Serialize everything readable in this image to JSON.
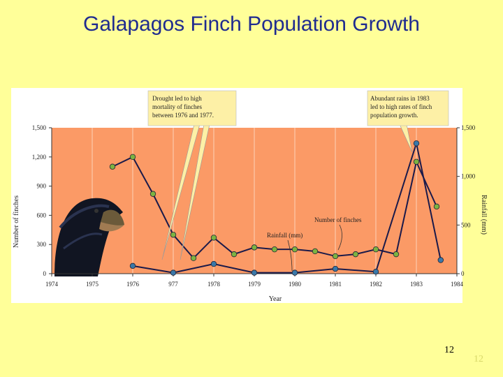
{
  "slide": {
    "title": "Galapagos Finch Population Growth",
    "page_number": "12",
    "page_number_ghost": "12"
  },
  "colors": {
    "background": "#ffff99",
    "title": "#1f2b8f",
    "plot": "#fb9a66",
    "callout": "#fdf0a6",
    "finch_marker": "#7cb342",
    "rain_marker": "#3a78a8",
    "line": "#1a1a4a"
  },
  "chart_data": {
    "type": "line",
    "xlabel": "Year",
    "ylabel": "Number of finches",
    "ylabel_right": "Rainfall (mm)",
    "xlim": [
      1974,
      1984
    ],
    "ylim": [
      0,
      1500
    ],
    "ylim_right": [
      0,
      1500
    ],
    "x_ticks": [
      "1974",
      "1975",
      "1976",
      "977",
      "1978",
      "1979",
      "1980",
      "1981",
      "1982",
      "1983",
      "1984"
    ],
    "y_ticks": [
      "0",
      "300",
      "600",
      "900",
      "1,200",
      "1,500"
    ],
    "y_ticks_right": [
      "0",
      "500",
      "1,000",
      "1,500"
    ],
    "series": [
      {
        "name": "Number of finches",
        "marker_color": "#7cb342",
        "points": [
          [
            1975.5,
            1100
          ],
          [
            1976.0,
            1200
          ],
          [
            1976.5,
            820
          ],
          [
            1977.0,
            400
          ],
          [
            1977.5,
            160
          ],
          [
            1978.0,
            370
          ],
          [
            1978.5,
            200
          ],
          [
            1979.0,
            270
          ],
          [
            1979.5,
            250
          ],
          [
            1980.0,
            250
          ],
          [
            1980.5,
            230
          ],
          [
            1981.0,
            180
          ],
          [
            1981.5,
            200
          ],
          [
            1982.0,
            250
          ],
          [
            1982.5,
            200
          ],
          [
            1983.0,
            1150
          ],
          [
            1983.5,
            690
          ]
        ]
      },
      {
        "name": "Rainfall (mm)",
        "marker_color": "#3a78a8",
        "points": [
          [
            1976.0,
            80
          ],
          [
            1977.0,
            10
          ],
          [
            1978.0,
            100
          ],
          [
            1979.0,
            10
          ],
          [
            1980.0,
            10
          ],
          [
            1981.0,
            50
          ],
          [
            1982.0,
            20
          ],
          [
            1983.0,
            1340
          ],
          [
            1983.6,
            140
          ]
        ]
      }
    ],
    "annotations": [
      {
        "text": [
          "Drought led to high",
          "mortality of finches",
          "between 1976 and 1977."
        ]
      },
      {
        "text": [
          "Abundant rains in 1983",
          "led to high rates of finch",
          "population growth."
        ]
      }
    ],
    "series_labels": [
      "Number of finches",
      "Rainfall (mm)"
    ]
  }
}
